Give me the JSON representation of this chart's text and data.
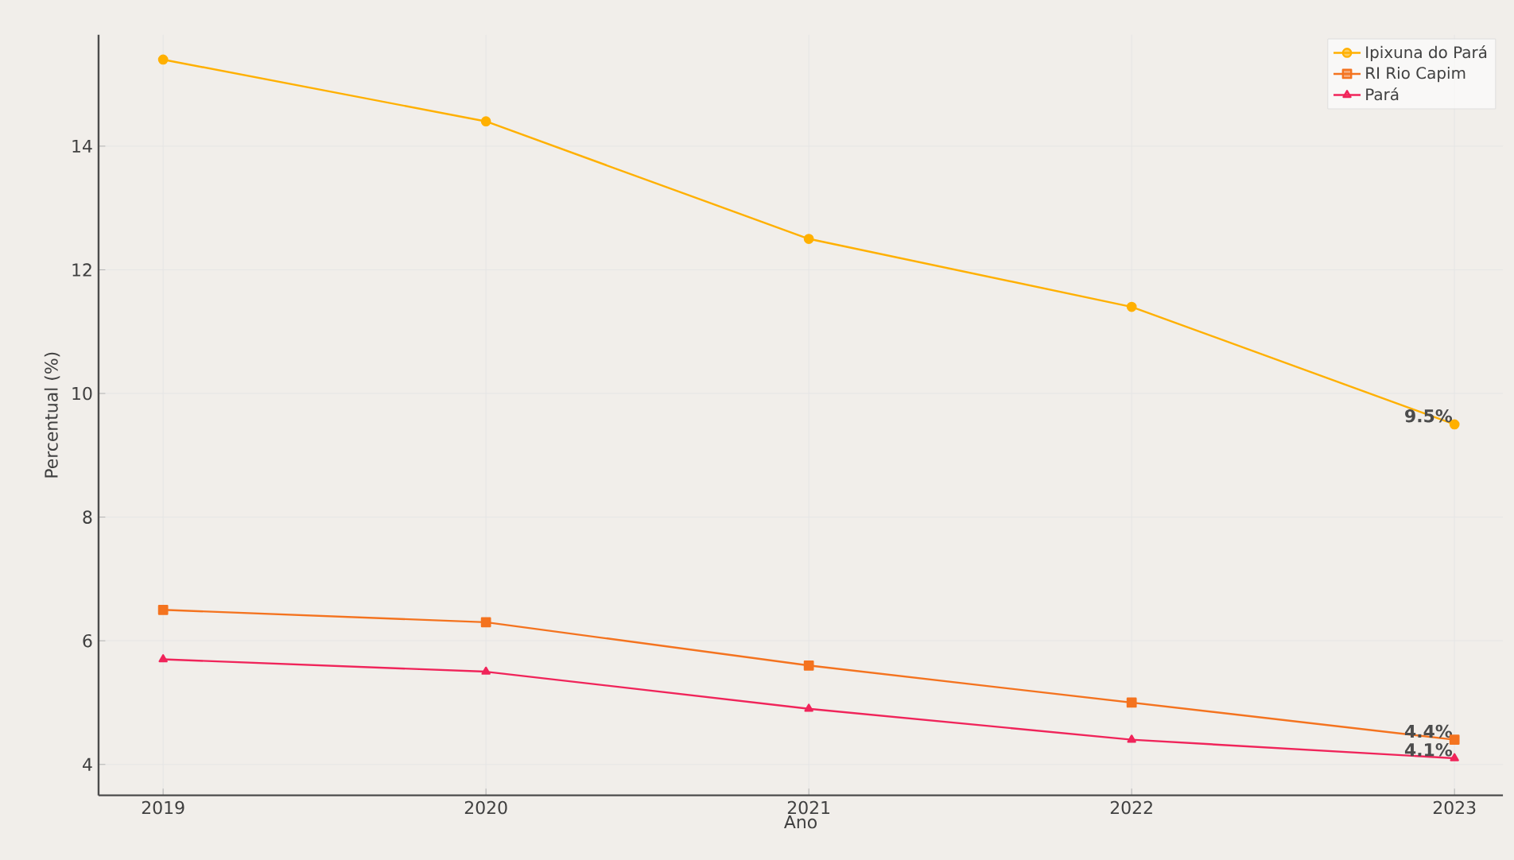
{
  "chart_data": {
    "type": "line",
    "xlabel": "Ano",
    "ylabel": "Percentual (%)",
    "x": [
      2019,
      2020,
      2021,
      2022,
      2023
    ],
    "series": [
      {
        "name": "Ipixuna do Pará",
        "color": "#ffb000",
        "marker": "circle",
        "values": [
          15.4,
          14.4,
          12.5,
          11.4,
          9.5
        ],
        "value_labels": [
          null,
          null,
          null,
          null,
          "9.5%"
        ]
      },
      {
        "name": "RI Rio Capim",
        "color": "#f4731f",
        "marker": "square",
        "values": [
          6.5,
          6.3,
          5.6,
          5.0,
          4.4
        ],
        "value_labels": [
          null,
          null,
          null,
          null,
          "4.4%"
        ]
      },
      {
        "name": "Pará",
        "color": "#f0245a",
        "marker": "triangle",
        "values": [
          5.7,
          5.5,
          4.9,
          4.4,
          4.1
        ],
        "value_labels": [
          null,
          null,
          null,
          null,
          "4.1%"
        ]
      }
    ],
    "xlim": [
      2018.8,
      2023.15
    ],
    "ylim": [
      3.5,
      15.8
    ],
    "xticks": [
      2019,
      2020,
      2021,
      2022,
      2023
    ],
    "yticks": [
      4,
      6,
      8,
      10,
      12,
      14
    ],
    "grid": true,
    "legend": "top right",
    "line_style": "solid"
  }
}
